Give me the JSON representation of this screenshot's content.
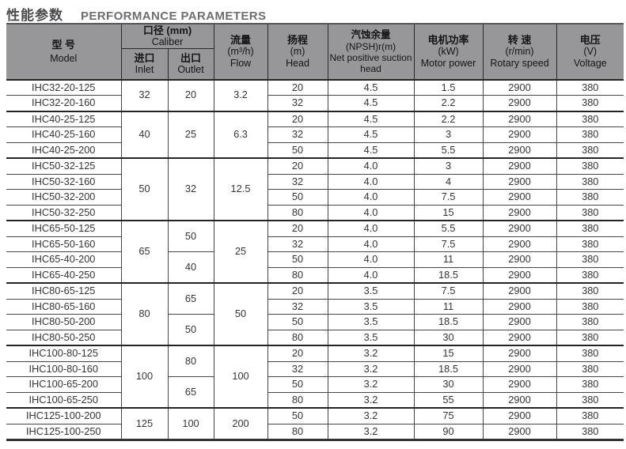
{
  "title": {
    "zh": "性能参数",
    "en": "PERFORMANCE PARAMETERS"
  },
  "colors": {
    "header_bg": "#97979a",
    "border_dark": "#29292b",
    "row_line": "#454548",
    "body_text": "#353538",
    "title_zh": "#4b4b4d",
    "title_en": "#6d6e70"
  },
  "table": {
    "headers": {
      "model": {
        "zh": "型 号",
        "en": "Model"
      },
      "caliber": {
        "zh": "口径 (mm)",
        "en": "Caliber"
      },
      "inlet": {
        "zh": "进口",
        "en": "Inlet"
      },
      "outlet": {
        "zh": "出口",
        "en": "Outlet"
      },
      "flow": {
        "zh": "流量",
        "unit": "(m³/h)",
        "en": "Flow"
      },
      "head": {
        "zh": "扬程",
        "unit": "(m)",
        "en": "Head"
      },
      "npsh": {
        "zh": "汽蚀余量",
        "unit": "(NPSH)r(m)",
        "en": "Net positive suction head"
      },
      "power": {
        "zh": "电机功率",
        "unit": "(kW)",
        "en": "Motor power"
      },
      "speed": {
        "zh": "转 速",
        "unit": "(r/min)",
        "en": "Rotary speed"
      },
      "voltage": {
        "zh": "电压",
        "unit": "(V)",
        "en": "Voltage"
      }
    },
    "groups": [
      {
        "inlet": "32",
        "flow": "3.2",
        "outlets": [
          {
            "value": "20",
            "span": 2
          }
        ],
        "rows": [
          {
            "model": "IHC32-20-125",
            "head": "20",
            "npsh": "4.5",
            "power": "1.5",
            "speed": "2900",
            "voltage": "380"
          },
          {
            "model": "IHC32-20-160",
            "head": "32",
            "npsh": "4.5",
            "power": "2.2",
            "speed": "2900",
            "voltage": "380"
          }
        ]
      },
      {
        "inlet": "40",
        "flow": "6.3",
        "outlets": [
          {
            "value": "25",
            "span": 3
          }
        ],
        "rows": [
          {
            "model": "IHC40-25-125",
            "head": "20",
            "npsh": "4.5",
            "power": "2.2",
            "speed": "2900",
            "voltage": "380"
          },
          {
            "model": "IHC40-25-160",
            "head": "32",
            "npsh": "4.5",
            "power": "3",
            "speed": "2900",
            "voltage": "380"
          },
          {
            "model": "IHC40-25-200",
            "head": "50",
            "npsh": "4.5",
            "power": "5.5",
            "speed": "2900",
            "voltage": "380"
          }
        ]
      },
      {
        "inlet": "50",
        "flow": "12.5",
        "outlets": [
          {
            "value": "32",
            "span": 4
          }
        ],
        "rows": [
          {
            "model": "IHC50-32-125",
            "head": "20",
            "npsh": "4.0",
            "power": "3",
            "speed": "2900",
            "voltage": "380"
          },
          {
            "model": "IHC50-32-160",
            "head": "32",
            "npsh": "4.0",
            "power": "4",
            "speed": "2900",
            "voltage": "380"
          },
          {
            "model": "IHC50-32-200",
            "head": "50",
            "npsh": "4.0",
            "power": "7.5",
            "speed": "2900",
            "voltage": "380"
          },
          {
            "model": "IHC50-32-250",
            "head": "80",
            "npsh": "4.0",
            "power": "15",
            "speed": "2900",
            "voltage": "380"
          }
        ]
      },
      {
        "inlet": "65",
        "flow": "25",
        "outlets": [
          {
            "value": "50",
            "span": 2
          },
          {
            "value": "40",
            "span": 2
          }
        ],
        "rows": [
          {
            "model": "IHC65-50-125",
            "head": "20",
            "npsh": "4.0",
            "power": "5.5",
            "speed": "2900",
            "voltage": "380"
          },
          {
            "model": "IHC65-50-160",
            "head": "32",
            "npsh": "4.0",
            "power": "7.5",
            "speed": "2900",
            "voltage": "380"
          },
          {
            "model": "IHC65-40-200",
            "head": "50",
            "npsh": "4.0",
            "power": "11",
            "speed": "2900",
            "voltage": "380"
          },
          {
            "model": "IHC65-40-250",
            "head": "80",
            "npsh": "4.0",
            "power": "18.5",
            "speed": "2900",
            "voltage": "380"
          }
        ]
      },
      {
        "inlet": "80",
        "flow": "50",
        "outlets": [
          {
            "value": "65",
            "span": 2
          },
          {
            "value": "50",
            "span": 2
          }
        ],
        "rows": [
          {
            "model": "IHC80-65-125",
            "head": "20",
            "npsh": "3.5",
            "power": "7.5",
            "speed": "2900",
            "voltage": "380"
          },
          {
            "model": "IHC80-65-160",
            "head": "32",
            "npsh": "3.5",
            "power": "11",
            "speed": "2900",
            "voltage": "380"
          },
          {
            "model": "IHC80-50-200",
            "head": "50",
            "npsh": "3.5",
            "power": "18.5",
            "speed": "2900",
            "voltage": "380"
          },
          {
            "model": "IHC80-50-250",
            "head": "80",
            "npsh": "3.5",
            "power": "30",
            "speed": "2900",
            "voltage": "380"
          }
        ]
      },
      {
        "inlet": "100",
        "flow": "100",
        "outlets": [
          {
            "value": "80",
            "span": 2
          },
          {
            "value": "65",
            "span": 2
          }
        ],
        "rows": [
          {
            "model": "IHC100-80-125",
            "head": "20",
            "npsh": "3.2",
            "power": "15",
            "speed": "2900",
            "voltage": "380"
          },
          {
            "model": "IHC100-80-160",
            "head": "32",
            "npsh": "3.2",
            "power": "18.5",
            "speed": "2900",
            "voltage": "380"
          },
          {
            "model": "IHC100-65-200",
            "head": "50",
            "npsh": "3.2",
            "power": "30",
            "speed": "2900",
            "voltage": "380"
          },
          {
            "model": "IHC100-65-250",
            "head": "80",
            "npsh": "3.2",
            "power": "55",
            "speed": "2900",
            "voltage": "380"
          }
        ]
      },
      {
        "inlet": "125",
        "flow": "200",
        "outlets": [
          {
            "value": "100",
            "span": 2
          }
        ],
        "rows": [
          {
            "model": "IHC125-100-200",
            "head": "50",
            "npsh": "3.2",
            "power": "75",
            "speed": "2900",
            "voltage": "380"
          },
          {
            "model": "IHC125-100-250",
            "head": "80",
            "npsh": "3.2",
            "power": "90",
            "speed": "2900",
            "voltage": "380"
          }
        ]
      }
    ]
  }
}
